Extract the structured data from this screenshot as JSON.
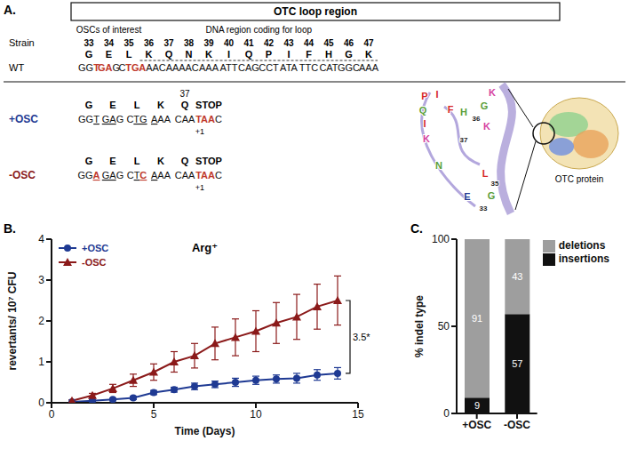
{
  "panels": [
    "A.",
    "B.",
    "C."
  ],
  "diagram": {
    "title": "OTC loop region",
    "column_heads": {
      "strain": "Strain",
      "osc": "OSCs of interest",
      "dna": "DNA region coding for loop"
    },
    "positions": [
      "33",
      "34",
      "35",
      "36",
      "37",
      "38",
      "39",
      "40",
      "41",
      "42",
      "43",
      "44",
      "45",
      "46",
      "47"
    ],
    "residues": [
      "G",
      "E",
      "L",
      "K",
      "Q",
      "N",
      "K",
      "I",
      "Q",
      "P",
      "I",
      "F",
      "H",
      "G",
      "K"
    ],
    "wt": {
      "strain": "WT",
      "codons": [
        [
          {
            "text": "GG"
          },
          {
            "text": "T",
            "red": true
          }
        ],
        [
          {
            "text": "GA",
            "red": true
          },
          {
            "text": "G"
          }
        ],
        [
          {
            "text": "C"
          },
          {
            "text": "TG",
            "red": true
          }
        ],
        [
          {
            "text": "A",
            "red": true
          },
          {
            "text": "AA"
          }
        ],
        [
          {
            "text": "CAA"
          }
        ],
        [
          {
            "text": "AAC"
          }
        ],
        [
          {
            "text": "AAA"
          }
        ],
        [
          {
            "text": "ATT"
          }
        ],
        [
          {
            "text": "CAG"
          }
        ],
        [
          {
            "text": "CCT"
          }
        ],
        [
          {
            "text": "ATA"
          }
        ],
        [
          {
            "text": "TTC"
          }
        ],
        [
          {
            "text": "CAT"
          }
        ],
        [
          {
            "text": "GGC"
          }
        ],
        [
          {
            "text": "AAA"
          }
        ]
      ]
    },
    "mutants": [
      {
        "strain": "+OSC",
        "color": "#1f3a93",
        "residues": [
          "G",
          "E",
          "L",
          "K",
          "Q",
          "STOP"
        ],
        "marked": "37",
        "shift": "+1",
        "codons": [
          [
            {
              "text": "GG"
            },
            {
              "text": "T",
              "underline": true
            }
          ],
          [
            {
              "text": "GA",
              "underline": true
            },
            {
              "text": "G"
            }
          ],
          [
            {
              "text": "C"
            },
            {
              "text": "TG",
              "underline": true
            }
          ],
          [
            {
              "text": "A",
              "underline": true
            },
            {
              "text": "AA"
            }
          ],
          [
            {
              "text": "CAA"
            }
          ],
          [
            {
              "text": "T",
              "red": true
            },
            {
              "text": "AA",
              "red": true
            },
            {
              "text": "C"
            }
          ]
        ]
      },
      {
        "strain": "-OSC",
        "color": "#8b1a1a",
        "residues": [
          "G",
          "E",
          "L",
          "K",
          "Q",
          "STOP"
        ],
        "shift": "+1",
        "codons": [
          [
            {
              "text": "GG"
            },
            {
              "text": "A",
              "red": true,
              "underline": true
            }
          ],
          [
            {
              "text": "GA",
              "underline": true
            },
            {
              "text": "G"
            }
          ],
          [
            {
              "text": "C"
            },
            {
              "text": "T",
              "underline": true
            },
            {
              "text": "C",
              "red": true,
              "underline": true
            }
          ],
          [
            {
              "text": "A",
              "underline": true
            },
            {
              "text": "AA"
            }
          ],
          [
            {
              "text": "CAA"
            }
          ],
          [
            {
              "text": "T",
              "red": true
            },
            {
              "text": "AA",
              "red": true
            },
            {
              "text": "C"
            }
          ]
        ]
      }
    ],
    "inset": {
      "protein": "OTC protein",
      "labels": [
        {
          "text": "P",
          "color": "#d62728"
        },
        {
          "text": "I",
          "color": "#d62728"
        },
        {
          "text": "K",
          "color": "#d63fa0"
        },
        {
          "text": "G",
          "color": "#5a9e3a"
        },
        {
          "text": "Q",
          "color": "#5a9e3a"
        },
        {
          "text": "F",
          "color": "#d62728"
        },
        {
          "text": "H",
          "color": "#5a9e3a"
        },
        {
          "text": "36",
          "color": "#222222"
        },
        {
          "text": "I",
          "color": "#d62728"
        },
        {
          "text": "K",
          "color": "#d63fa0"
        },
        {
          "text": "K",
          "color": "#d63fa0"
        },
        {
          "text": "37",
          "color": "#222222"
        },
        {
          "text": "N",
          "color": "#5a9e3a"
        },
        {
          "text": "L",
          "color": "#d62728"
        },
        {
          "text": "35",
          "color": "#222222"
        },
        {
          "text": "E",
          "color": "#1f3a93"
        },
        {
          "text": "G",
          "color": "#5a9e3a"
        },
        {
          "text": "33",
          "color": "#222222"
        }
      ]
    }
  },
  "chart_data": [
    {
      "type": "line",
      "title": "Arg⁺",
      "x_label": "Time (Days)",
      "y_label": "revertants/ 10⁷ CFU",
      "x": [
        1,
        2,
        3,
        4,
        5,
        6,
        7,
        8,
        9,
        10,
        11,
        12,
        13,
        14
      ],
      "xlim": [
        0,
        15
      ],
      "xticks": [
        0,
        5,
        10,
        15
      ],
      "ylim": [
        0,
        4
      ],
      "yticks": [
        0,
        1,
        2,
        3,
        4
      ],
      "legend": "top-left",
      "series": [
        {
          "name": "+OSC",
          "color": "#1f3a93",
          "marker": "circle",
          "values": [
            0.02,
            0.05,
            0.08,
            0.12,
            0.25,
            0.32,
            0.4,
            0.45,
            0.5,
            0.55,
            0.58,
            0.6,
            0.68,
            0.72
          ],
          "errors": [
            0.01,
            0.02,
            0.03,
            0.04,
            0.05,
            0.06,
            0.08,
            0.08,
            0.1,
            0.1,
            0.1,
            0.12,
            0.13,
            0.14
          ]
        },
        {
          "name": "-OSC",
          "color": "#8b1a1a",
          "marker": "triangle",
          "values": [
            0.05,
            0.18,
            0.35,
            0.55,
            0.75,
            1.0,
            1.15,
            1.45,
            1.6,
            1.75,
            1.95,
            2.1,
            2.35,
            2.5
          ],
          "errors": [
            0.02,
            0.05,
            0.1,
            0.15,
            0.2,
            0.25,
            0.3,
            0.4,
            0.45,
            0.5,
            0.5,
            0.55,
            0.55,
            0.6
          ]
        }
      ],
      "annotation": {
        "text": "3.5*",
        "y_range": [
          0.72,
          2.5
        ]
      }
    },
    {
      "type": "bar",
      "stacked": true,
      "categories": [
        "+OSC",
        "-OSC"
      ],
      "ylim": [
        0,
        100
      ],
      "yticks": [
        0,
        50,
        100
      ],
      "y_label": "% indel type",
      "data_labels": true,
      "legend": "top-right",
      "series": [
        {
          "name": "insertions",
          "color": "#111111",
          "values": [
            9,
            57
          ]
        },
        {
          "name": "deletions",
          "color": "#9e9e9e",
          "values": [
            91,
            43
          ]
        }
      ]
    }
  ]
}
